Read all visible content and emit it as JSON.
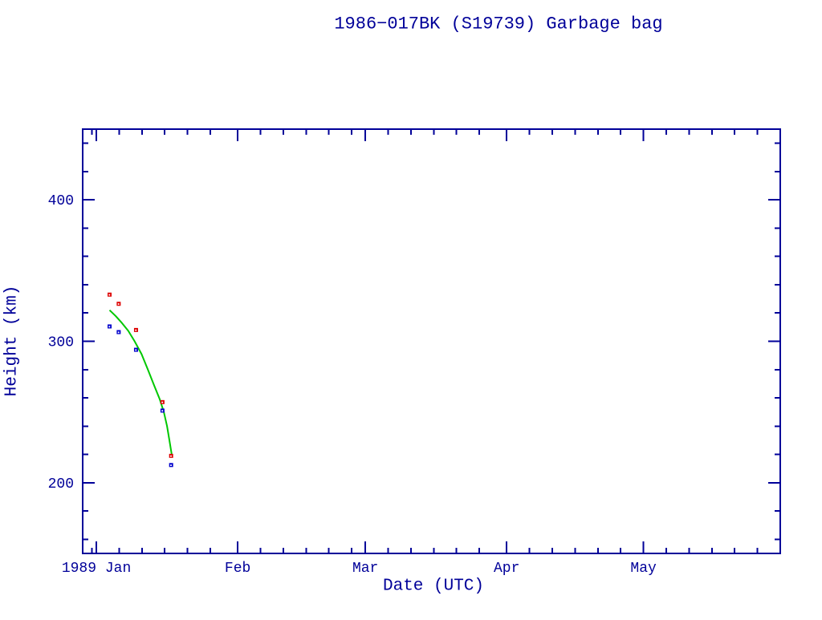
{
  "colors": {
    "background": "#ffffff",
    "axis_and_text": "#000099",
    "red_points": "#dd0000",
    "blue_points": "#0000cc",
    "fit_curve_green": "#00c800",
    "marker_center_dot": "#ffffff"
  },
  "chart_data": {
    "type": "scatter",
    "title": "1986−017BK (S19739) Garbage bag",
    "xlabel": "Date (UTC)",
    "ylabel": "Height (km)",
    "grid": false,
    "legend": "none",
    "x_axis": {
      "unit": "date",
      "xlim": [
        "1988-12-29",
        "1989-05-31"
      ],
      "xlim_days_from_jan1_1989": [
        -3,
        150
      ],
      "major_ticks": [
        {
          "t": 0,
          "label": "1989 Jan"
        },
        {
          "t": 31,
          "label": "Feb"
        },
        {
          "t": 59,
          "label": "Mar"
        },
        {
          "t": 90,
          "label": "Apr"
        },
        {
          "t": 120,
          "label": "May"
        }
      ],
      "minor_tick_days": [
        -1,
        5,
        10,
        15,
        20,
        25,
        36,
        41,
        46,
        51,
        56,
        64,
        69,
        74,
        79,
        84,
        95,
        100,
        105,
        110,
        115,
        125,
        130,
        135,
        140,
        145
      ]
    },
    "y_axis": {
      "ylim": [
        150,
        450
      ],
      "major_ticks": [
        {
          "v": 200,
          "label": "200"
        },
        {
          "v": 300,
          "label": "300"
        },
        {
          "v": 400,
          "label": "400"
        }
      ],
      "minor_tick_values": [
        160,
        180,
        220,
        240,
        260,
        280,
        320,
        340,
        360,
        380,
        420,
        440
      ]
    },
    "series": [
      {
        "id": "red",
        "name": "observed height (red squares)",
        "marker": "filled-square-with-center-dot",
        "color": "#dd0000",
        "points": [
          {
            "date": "1989-01-04",
            "t": 2.9,
            "height_km": 333
          },
          {
            "date": "1989-01-06",
            "t": 4.9,
            "height_km": 326.5
          },
          {
            "date": "1989-01-10",
            "t": 8.7,
            "height_km": 308
          },
          {
            "date": "1989-01-15",
            "t": 14.5,
            "height_km": 257
          },
          {
            "date": "1989-01-17",
            "t": 16.4,
            "height_km": 219
          }
        ]
      },
      {
        "id": "blue",
        "name": "observed height (blue squares)",
        "marker": "filled-square-with-center-dot",
        "color": "#0000cc",
        "points": [
          {
            "date": "1989-01-04",
            "t": 2.9,
            "height_km": 310.5
          },
          {
            "date": "1989-01-06",
            "t": 4.9,
            "height_km": 306.5
          },
          {
            "date": "1989-01-10",
            "t": 8.7,
            "height_km": 294
          },
          {
            "date": "1989-01-15",
            "t": 14.5,
            "height_km": 251
          },
          {
            "date": "1989-01-17",
            "t": 16.4,
            "height_km": 212.5
          }
        ]
      }
    ],
    "fit_curve": {
      "name": "decay fit curve (green)",
      "color": "#00c800",
      "points_t_height": [
        [
          2.9,
          322
        ],
        [
          4.2,
          318
        ],
        [
          5.6,
          313
        ],
        [
          7.0,
          307.4
        ],
        [
          8.4,
          300
        ],
        [
          9.9,
          291
        ],
        [
          11.3,
          280
        ],
        [
          12.7,
          268.5
        ],
        [
          13.9,
          259
        ],
        [
          14.8,
          250
        ],
        [
          15.5,
          240
        ],
        [
          16.0,
          230.5
        ],
        [
          16.5,
          220.3
        ]
      ]
    }
  }
}
